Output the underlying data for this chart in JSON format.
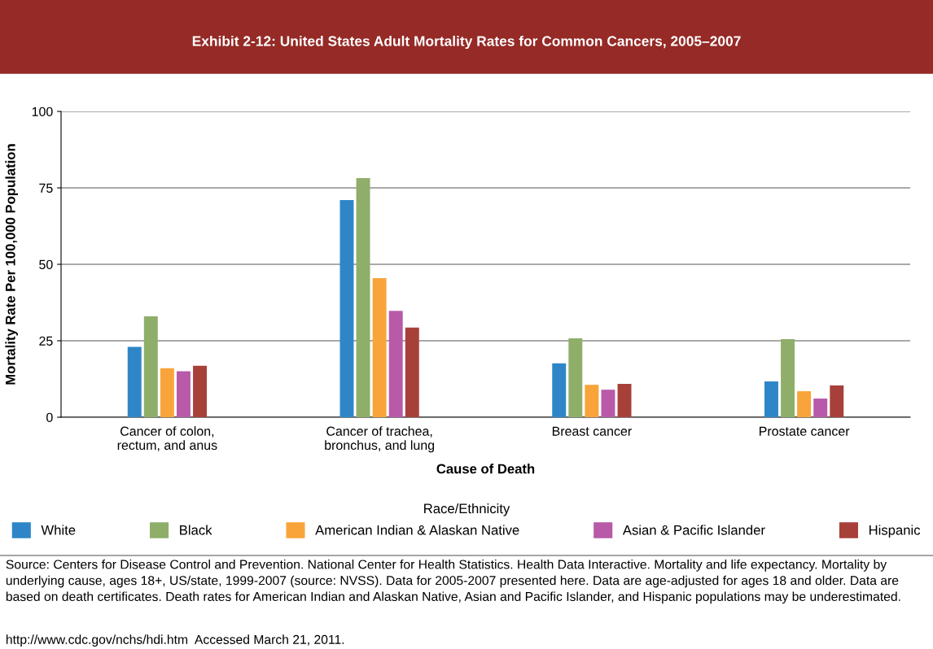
{
  "chart_data": {
    "type": "bar",
    "title": "Exhibit 2-12: United States Adult Mortality Rates for Common Cancers, 2005–2007",
    "xlabel": "Cause of Death",
    "ylabel": "Mortality Rate Per 100,000 Population",
    "legend_title": "Race/Ethnicity",
    "categories": [
      "Cancer of colon,\nrectum, and anus",
      "Cancer of trachea,\nbronchus, and lung",
      "Breast cancer",
      "Prostate cancer"
    ],
    "series": [
      {
        "name": "White",
        "color": "#2e86c8",
        "values": [
          23,
          71,
          17.6,
          11.7
        ]
      },
      {
        "name": "Black",
        "color": "#8fae6a",
        "values": [
          33,
          78.2,
          25.8,
          25.5
        ]
      },
      {
        "name": "American Indian & Alaskan Native",
        "color": "#f9a43a",
        "values": [
          16,
          45.5,
          10.6,
          8.5
        ]
      },
      {
        "name": "Asian & Pacific Islander",
        "color": "#b85aa8",
        "values": [
          15,
          34.8,
          9,
          6.1
        ]
      },
      {
        "name": "Hispanic",
        "color": "#a8403a",
        "values": [
          16.8,
          29.3,
          10.9,
          10.4
        ]
      }
    ],
    "ylim": [
      0,
      100
    ],
    "yticks": [
      0,
      25,
      50,
      75,
      100
    ],
    "grid": "y",
    "legend": "bottom",
    "annotations": [
      "Source: Centers for Disease Control and Prevention. National Center for Health Statistics. Health Data Interactive. Mortality and life expectancy. Mortality by underlying cause, ages 18+, US/state, 1999-2007 (source: NVSS). Data for 2005-2007 presented here. Data are age-adjusted for ages 18 and older. Data are based on death certificates. Death rates for American Indian and Alaskan Native, Asian and Pacific Islander, and Hispanic populations may be underestimated.",
      "http://www.cdc.gov/nchs/hdi.htm  Accessed March 21, 2011."
    ]
  }
}
